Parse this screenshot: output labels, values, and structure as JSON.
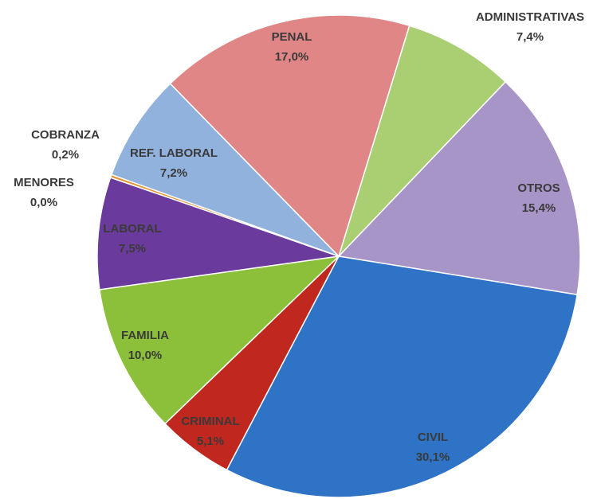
{
  "chart_data": {
    "type": "pie",
    "categories": [
      "ADMINISTRATIVAS",
      "OTROS",
      "CIVIL",
      "CRIMINAL",
      "FAMILIA",
      "LABORAL",
      "MENORES",
      "COBRANZA",
      "REF. LABORAL",
      "PENAL"
    ],
    "values": [
      7.4,
      15.4,
      30.1,
      5.1,
      10.0,
      7.5,
      0.0,
      0.2,
      7.2,
      17.0
    ],
    "value_labels": [
      "7,4%",
      "15,4%",
      "30,1%",
      "5,1%",
      "10,0%",
      "7,5%",
      "0,0%",
      "0,2%",
      "7,2%",
      "17,0%"
    ],
    "colors": [
      "#a9cf72",
      "#a895c8",
      "#2f73c6",
      "#c0271f",
      "#8cc03a",
      "#6a3b9c",
      "#4a7fc0",
      "#e0922f",
      "#92b2de",
      "#e08686"
    ]
  }
}
